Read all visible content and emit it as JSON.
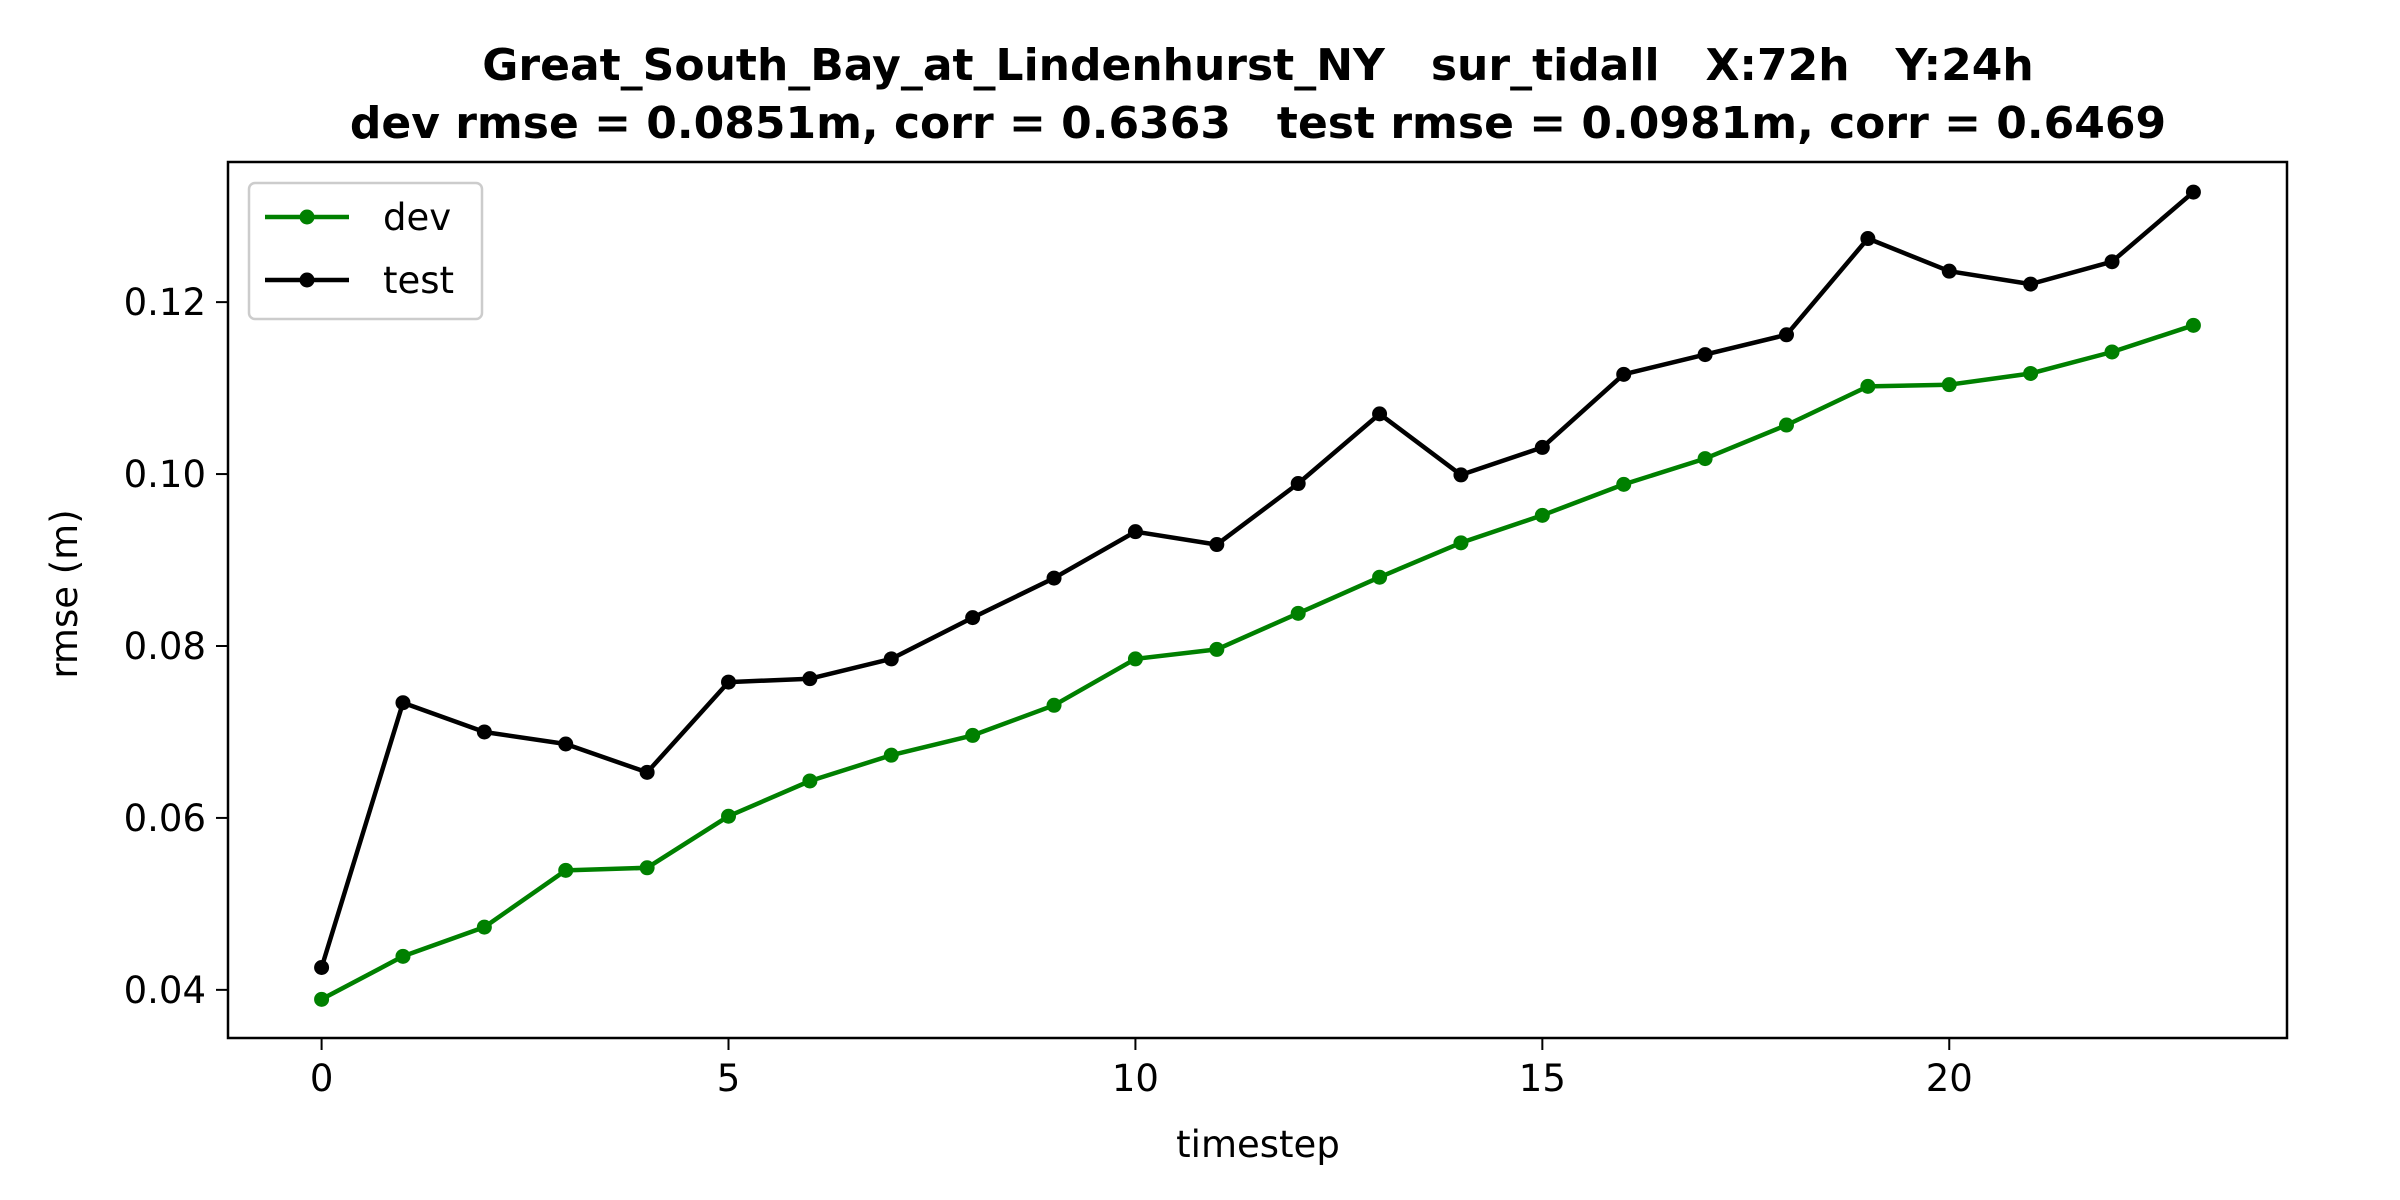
{
  "chart_data": {
    "type": "line",
    "title": "Great_South_Bay_at_Lindenhurst_NY   sur_tidall   X:72h   Y:24h",
    "subtitle": "dev rmse = 0.0851m, corr = 0.6363   test rmse = 0.0981m, corr = 0.6469",
    "xlabel": "timestep",
    "ylabel": "rmse (m)",
    "xlim": [
      -1.15,
      24.15
    ],
    "ylim": [
      0.0344,
      0.1363
    ],
    "xticks": [
      0,
      5,
      10,
      15,
      20
    ],
    "xtick_labels": [
      "0",
      "5",
      "10",
      "15",
      "20"
    ],
    "yticks": [
      0.04,
      0.06,
      0.08,
      0.1,
      0.12
    ],
    "ytick_labels": [
      "0.04",
      "0.06",
      "0.08",
      "0.10",
      "0.12"
    ],
    "grid": false,
    "legend_position": "top-left",
    "x": [
      0,
      1,
      2,
      3,
      4,
      5,
      6,
      7,
      8,
      9,
      10,
      11,
      12,
      13,
      14,
      15,
      16,
      17,
      18,
      19,
      20,
      21,
      22,
      23
    ],
    "series": [
      {
        "name": "dev",
        "color": "#008000",
        "values": [
          0.0389,
          0.0439,
          0.0473,
          0.0539,
          0.0542,
          0.0602,
          0.0643,
          0.0673,
          0.0696,
          0.0731,
          0.0785,
          0.0796,
          0.0838,
          0.088,
          0.092,
          0.0952,
          0.0988,
          0.1018,
          0.1057,
          0.1102,
          0.1104,
          0.1117,
          0.1142,
          0.1173
        ]
      },
      {
        "name": "test",
        "color": "#000000",
        "values": [
          0.0426,
          0.0734,
          0.07,
          0.0686,
          0.0653,
          0.0758,
          0.0762,
          0.0785,
          0.0833,
          0.0879,
          0.0933,
          0.0918,
          0.0989,
          0.107,
          0.0999,
          0.1031,
          0.1116,
          0.1139,
          0.1162,
          0.1274,
          0.1236,
          0.1221,
          0.1247,
          0.1328
        ]
      }
    ]
  }
}
